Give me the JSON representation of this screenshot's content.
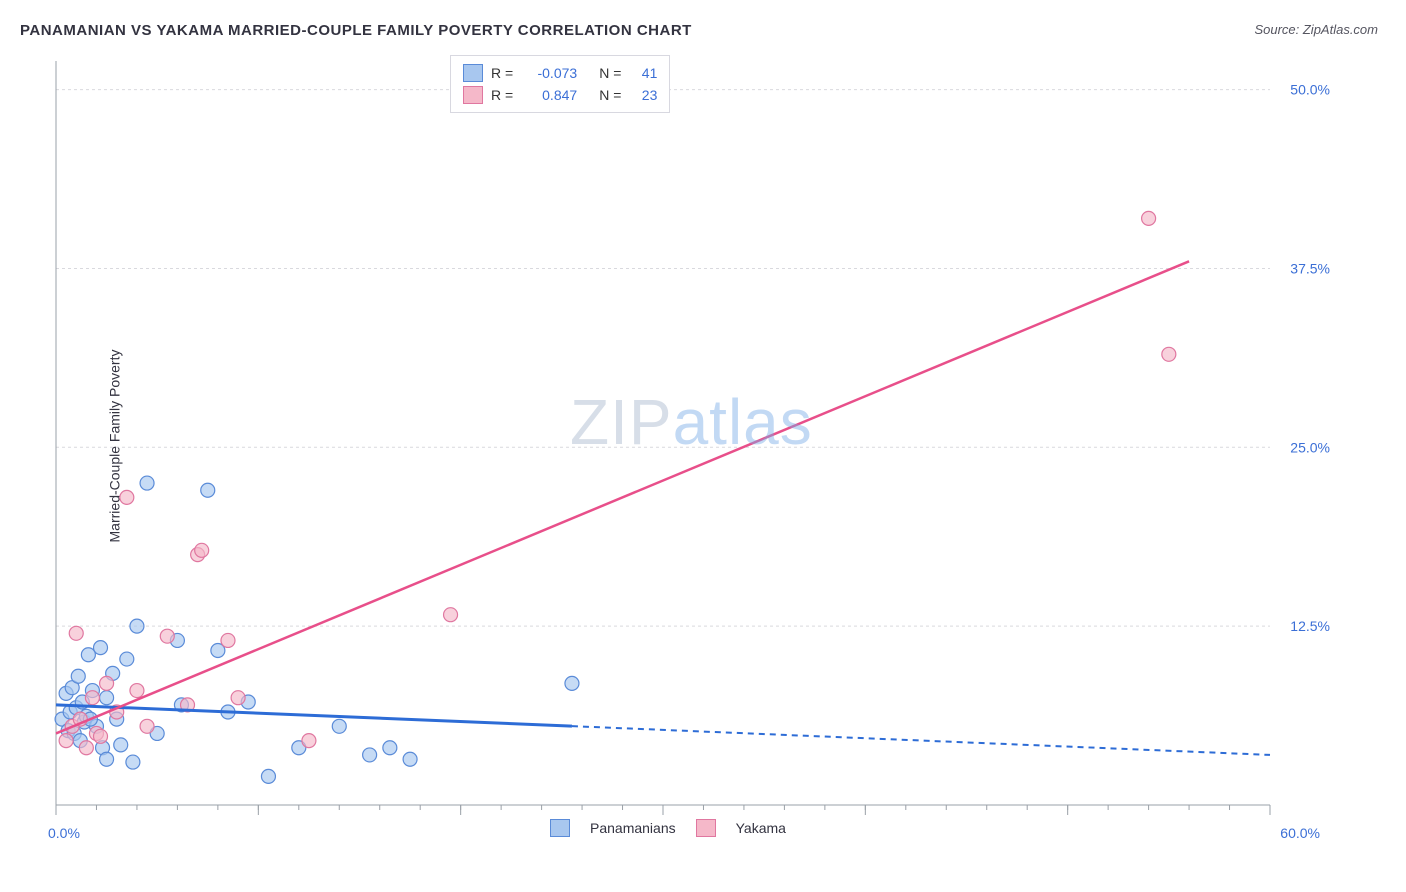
{
  "title": "PANAMANIAN VS YAKAMA MARRIED-COUPLE FAMILY POVERTY CORRELATION CHART",
  "source_prefix": "Source: ",
  "source": "ZipAtlas.com",
  "ylabel": "Married-Couple Family Poverty",
  "watermark_a": "ZIP",
  "watermark_b": "atlas",
  "chart": {
    "type": "scatter",
    "xlim": [
      0,
      60
    ],
    "ylim": [
      0,
      52
    ],
    "x_tick_major": [
      0,
      10,
      20,
      30,
      40,
      50,
      60
    ],
    "x_tick_minor_step": 2,
    "y_gridlines": [
      12.5,
      25.0,
      37.5,
      50.0
    ],
    "x_axis_labels": {
      "left": "0.0%",
      "right": "60.0%"
    },
    "y_axis_labels": [
      "12.5%",
      "25.0%",
      "37.5%",
      "50.0%"
    ],
    "background_color": "#ffffff",
    "grid_color": "#d9d9de",
    "axis_color": "#9aa0a8",
    "axis_label_color": "#3b6fd6",
    "marker_radius": 7,
    "marker_stroke_width": 1.2,
    "series": [
      {
        "name": "Panamanians",
        "fill": "#a8c7ef",
        "stroke": "#5a8bd8",
        "fill_opacity": 0.65,
        "regression": {
          "x1": 0,
          "y1": 7.0,
          "x2": 60,
          "y2": 3.5,
          "solid_until_x": 25.5,
          "color": "#2d6cd6",
          "width": 3,
          "dash": "6 5"
        },
        "points": [
          [
            0.3,
            6.0
          ],
          [
            0.5,
            7.8
          ],
          [
            0.6,
            5.2
          ],
          [
            0.7,
            6.5
          ],
          [
            0.8,
            8.2
          ],
          [
            0.9,
            5.0
          ],
          [
            1.0,
            6.8
          ],
          [
            1.1,
            9.0
          ],
          [
            1.2,
            4.5
          ],
          [
            1.3,
            7.2
          ],
          [
            1.4,
            5.8
          ],
          [
            1.5,
            6.2
          ],
          [
            1.6,
            10.5
          ],
          [
            1.8,
            8.0
          ],
          [
            2.0,
            5.5
          ],
          [
            2.2,
            11.0
          ],
          [
            2.3,
            4.0
          ],
          [
            2.5,
            7.5
          ],
          [
            2.5,
            3.2
          ],
          [
            2.8,
            9.2
          ],
          [
            3.0,
            6.0
          ],
          [
            3.2,
            4.2
          ],
          [
            3.5,
            10.2
          ],
          [
            3.8,
            3.0
          ],
          [
            4.0,
            12.5
          ],
          [
            4.5,
            22.5
          ],
          [
            5.0,
            5.0
          ],
          [
            6.0,
            11.5
          ],
          [
            6.2,
            7.0
          ],
          [
            7.5,
            22.0
          ],
          [
            8.0,
            10.8
          ],
          [
            8.5,
            6.5
          ],
          [
            9.5,
            7.2
          ],
          [
            10.5,
            2.0
          ],
          [
            12.0,
            4.0
          ],
          [
            14.0,
            5.5
          ],
          [
            15.5,
            3.5
          ],
          [
            16.5,
            4.0
          ],
          [
            17.5,
            3.2
          ],
          [
            25.5,
            8.5
          ],
          [
            1.7,
            6.0
          ]
        ]
      },
      {
        "name": "Yakama",
        "fill": "#f5b8c9",
        "stroke": "#e077a0",
        "fill_opacity": 0.65,
        "regression": {
          "x1": 0,
          "y1": 5.0,
          "x2": 56,
          "y2": 38.0,
          "solid_until_x": 56,
          "color": "#e84f8a",
          "width": 2.5,
          "dash": ""
        },
        "points": [
          [
            0.5,
            4.5
          ],
          [
            0.8,
            5.5
          ],
          [
            1.0,
            12.0
          ],
          [
            1.2,
            6.0
          ],
          [
            1.5,
            4.0
          ],
          [
            1.8,
            7.5
          ],
          [
            2.0,
            5.0
          ],
          [
            2.5,
            8.5
          ],
          [
            3.0,
            6.5
          ],
          [
            3.5,
            21.5
          ],
          [
            4.0,
            8.0
          ],
          [
            4.5,
            5.5
          ],
          [
            5.5,
            11.8
          ],
          [
            6.5,
            7.0
          ],
          [
            7.0,
            17.5
          ],
          [
            7.2,
            17.8
          ],
          [
            8.5,
            11.5
          ],
          [
            9.0,
            7.5
          ],
          [
            12.5,
            4.5
          ],
          [
            19.5,
            13.3
          ],
          [
            54.0,
            41.0
          ],
          [
            55.0,
            31.5
          ],
          [
            2.2,
            4.8
          ]
        ]
      }
    ]
  },
  "top_legend": {
    "rows": [
      {
        "fill": "#a8c7ef",
        "stroke": "#5a8bd8",
        "r": "-0.073",
        "n": "41"
      },
      {
        "fill": "#f5b8c9",
        "stroke": "#e077a0",
        "r": "0.847",
        "n": "23"
      }
    ],
    "label_r": "R =",
    "label_n": "N ="
  },
  "bottom_legend": {
    "items": [
      {
        "fill": "#a8c7ef",
        "stroke": "#5a8bd8",
        "label": "Panamanians"
      },
      {
        "fill": "#f5b8c9",
        "stroke": "#e077a0",
        "label": "Yakama"
      }
    ]
  }
}
